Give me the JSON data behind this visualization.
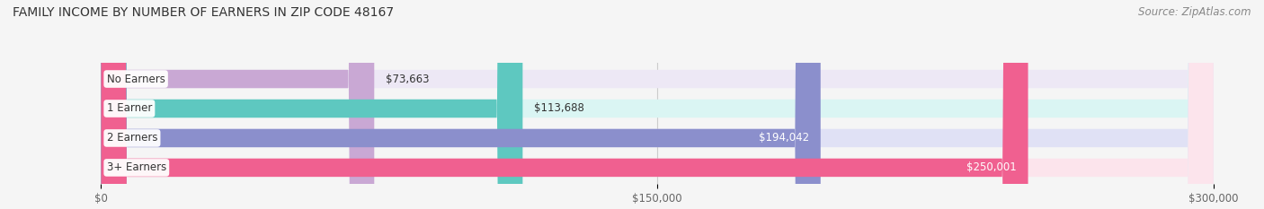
{
  "title": "FAMILY INCOME BY NUMBER OF EARNERS IN ZIP CODE 48167",
  "source": "Source: ZipAtlas.com",
  "categories": [
    "No Earners",
    "1 Earner",
    "2 Earners",
    "3+ Earners"
  ],
  "values": [
    73663,
    113688,
    194042,
    250001
  ],
  "labels": [
    "$73,663",
    "$113,688",
    "$194,042",
    "$250,001"
  ],
  "bar_colors": [
    "#c9a8d4",
    "#5ec8c0",
    "#8b8fcc",
    "#f06090"
  ],
  "bar_bg_colors": [
    "#ede8f5",
    "#daf5f3",
    "#e0e1f5",
    "#fce4ec"
  ],
  "xlim": [
    0,
    300000
  ],
  "xticks": [
    0,
    150000,
    300000
  ],
  "xtick_labels": [
    "$0",
    "$150,000",
    "$300,000"
  ],
  "title_fontsize": 10,
  "source_fontsize": 8.5,
  "label_fontsize": 8.5,
  "category_fontsize": 8.5,
  "tick_fontsize": 8.5,
  "background_color": "#f5f5f5"
}
